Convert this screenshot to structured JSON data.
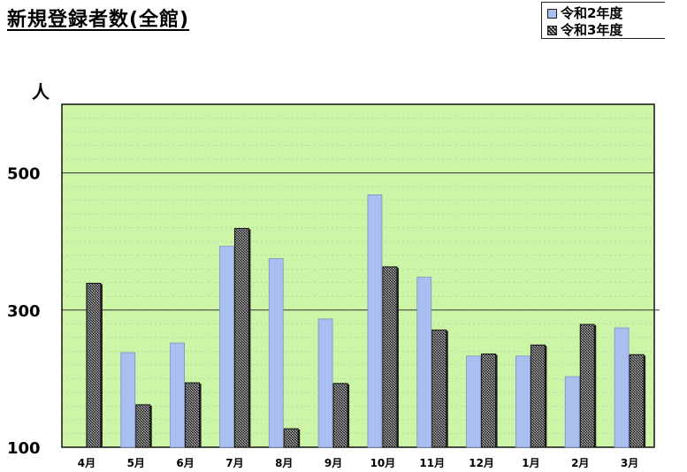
{
  "page": {
    "title": "新規登録者数(全館)",
    "unit": "人",
    "colors": {
      "plot_background": "#ccf5a8",
      "series_r2": "#a9bff0",
      "series_r3": "#5a5a5a",
      "gridline": "#8aa080"
    }
  },
  "legend": {
    "items": [
      {
        "label": "令和2年度",
        "swatch": "light-blue-square"
      },
      {
        "label": "令和3年度",
        "swatch": "crosshatch-square"
      }
    ]
  },
  "chart_data": {
    "type": "bar",
    "title": "新規登録者数(全館)",
    "ylabel": "人",
    "xlabel": "",
    "ylim": [
      100,
      600
    ],
    "yticks": [
      100,
      300,
      500
    ],
    "grid": true,
    "legend_position": "top-right",
    "categories": [
      "4月",
      "5月",
      "6月",
      "7月",
      "8月",
      "9月",
      "10月",
      "11月",
      "12月",
      "1月",
      "2月",
      "3月"
    ],
    "series": [
      {
        "name": "令和2年度",
        "values": [
          null,
          238,
          252,
          393,
          375,
          287,
          468,
          348,
          233,
          233,
          203,
          274
        ]
      },
      {
        "name": "令和3年度",
        "values": [
          339,
          162,
          194,
          419,
          127,
          193,
          363,
          271,
          236,
          249,
          279,
          235
        ]
      }
    ]
  }
}
